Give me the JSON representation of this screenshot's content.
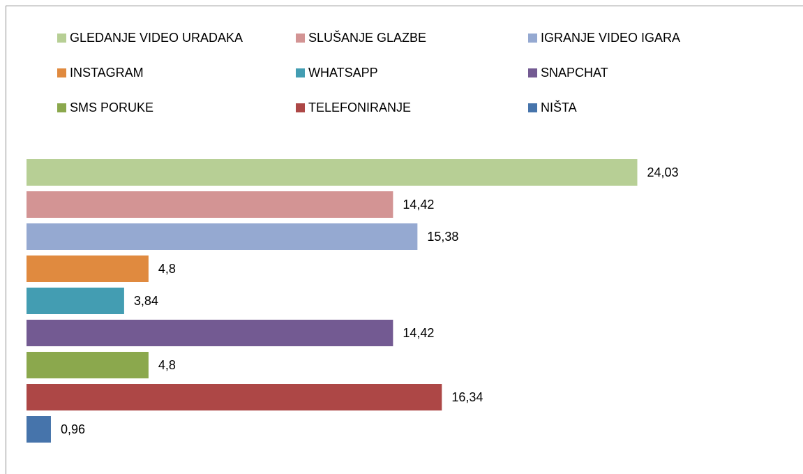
{
  "chart_data": {
    "type": "bar",
    "orientation": "horizontal",
    "legend": "top",
    "xlim": [
      0,
      30
    ],
    "series": [
      {
        "name": "GLEDANJE VIDEO URADAKA",
        "color": "#b7cf95",
        "values": [
          24.03
        ],
        "value_labels": [
          "24,03"
        ]
      },
      {
        "name": "SLUŠANJE GLAZBE",
        "color": "#d39494",
        "values": [
          14.42
        ],
        "value_labels": [
          "14,42"
        ]
      },
      {
        "name": "IGRANJE VIDEO IGARA",
        "color": "#95a9d1",
        "values": [
          15.38
        ],
        "value_labels": [
          "15,38"
        ]
      },
      {
        "name": "INSTAGRAM",
        "color": "#e08a3f",
        "values": [
          4.8
        ],
        "value_labels": [
          "4,8"
        ]
      },
      {
        "name": "WHATSAPP",
        "color": "#439db2",
        "values": [
          3.84
        ],
        "value_labels": [
          "3,84"
        ]
      },
      {
        "name": "SNAPCHAT",
        "color": "#735a92",
        "values": [
          14.42
        ],
        "value_labels": [
          "14,42"
        ]
      },
      {
        "name": "SMS PORUKE",
        "color": "#8ba84d",
        "values": [
          4.8
        ],
        "value_labels": [
          "4,8"
        ]
      },
      {
        "name": "TELEFONIRANJE",
        "color": "#ad4746",
        "values": [
          16.34
        ],
        "value_labels": [
          "16,34"
        ]
      },
      {
        "name": "NIŠTA",
        "color": "#4674ab",
        "values": [
          0.96
        ],
        "value_labels": [
          "0,96"
        ]
      }
    ]
  }
}
